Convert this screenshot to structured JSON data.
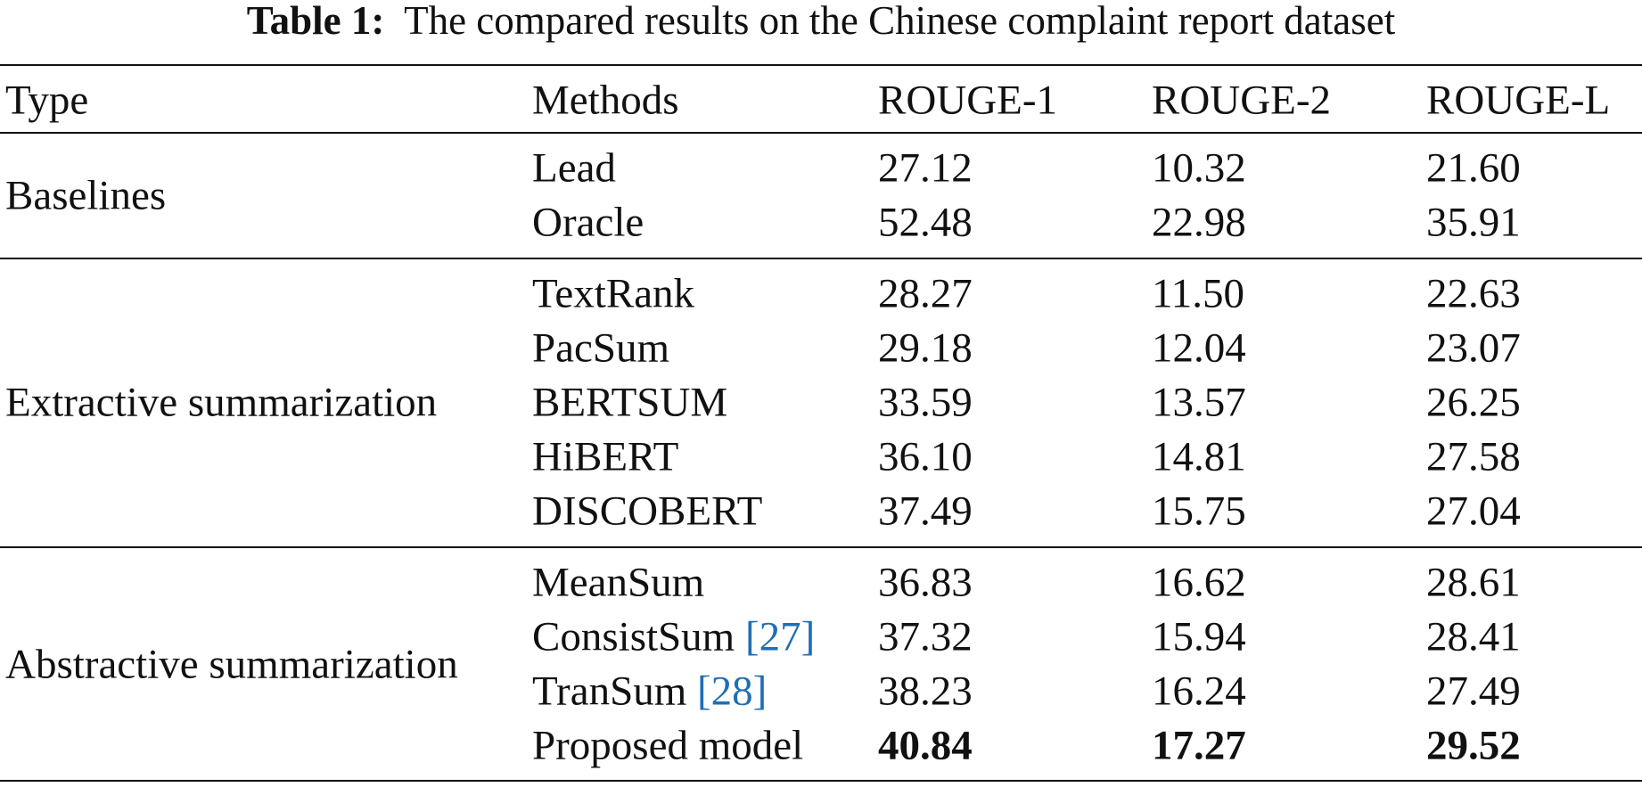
{
  "caption": {
    "label": "Table 1:",
    "text": "The compared results on the Chinese complaint report dataset"
  },
  "table": {
    "header": [
      "Type",
      "Methods",
      "ROUGE-1",
      "ROUGE-2",
      "ROUGE-L"
    ],
    "groups": [
      {
        "type": "Baselines",
        "rows": [
          {
            "method": "Lead",
            "values": [
              "27.12",
              "10.32",
              "21.60"
            ]
          },
          {
            "method": "Oracle",
            "values": [
              "52.48",
              "22.98",
              "35.91"
            ]
          }
        ]
      },
      {
        "type": "Extractive summarization",
        "rows": [
          {
            "method": "TextRank",
            "values": [
              "28.27",
              "11.50",
              "22.63"
            ]
          },
          {
            "method": "PacSum",
            "values": [
              "29.18",
              "12.04",
              "23.07"
            ]
          },
          {
            "method": "BERTSUM",
            "values": [
              "33.59",
              "13.57",
              "26.25"
            ]
          },
          {
            "method": "HiBERT",
            "values": [
              "36.10",
              "14.81",
              "27.58"
            ]
          },
          {
            "method": "DISCOBERT",
            "values": [
              "37.49",
              "15.75",
              "27.04"
            ]
          }
        ]
      },
      {
        "type": "Abstractive summarization",
        "rows": [
          {
            "method": "MeanSum",
            "values": [
              "36.83",
              "16.62",
              "28.61"
            ]
          },
          {
            "method": "ConsistSum",
            "cite": "[27]",
            "values": [
              "37.32",
              "15.94",
              "28.41"
            ]
          },
          {
            "method": "TranSum",
            "cite": "[28]",
            "values": [
              "38.23",
              "16.24",
              "27.49"
            ]
          },
          {
            "method": "Proposed model",
            "values": [
              "40.84",
              "17.27",
              "29.52"
            ],
            "bold": true
          }
        ]
      }
    ]
  }
}
